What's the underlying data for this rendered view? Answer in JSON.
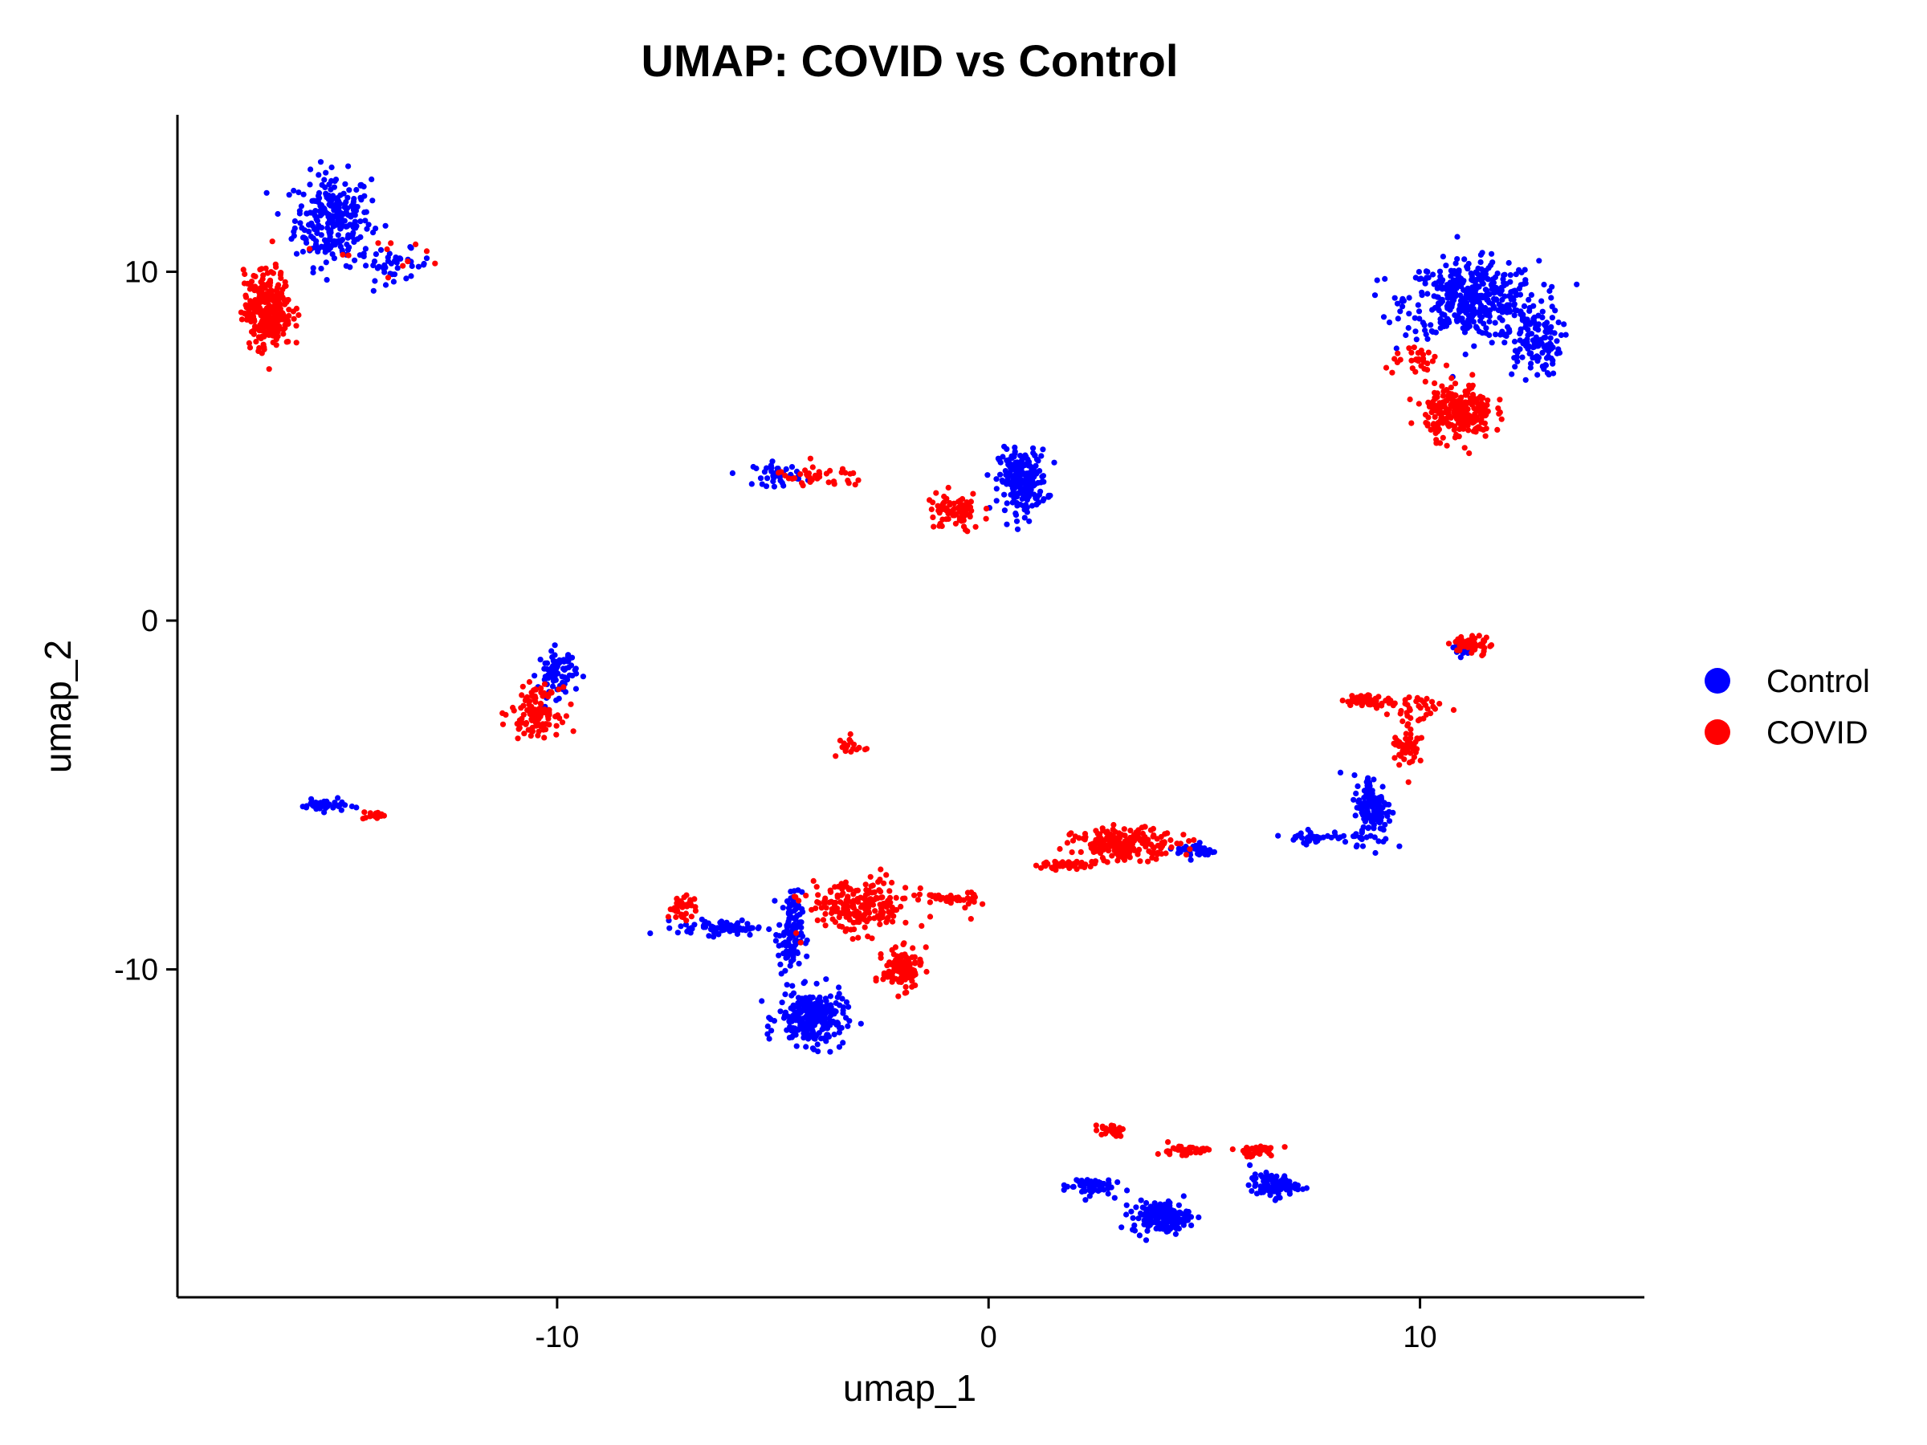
{
  "chart_data": {
    "type": "scatter",
    "title": "UMAP: COVID vs Control",
    "xlabel": "umap_1",
    "ylabel": "umap_2",
    "xlim": [
      -18.8,
      15.2
    ],
    "ylim": [
      -19.4,
      14.5
    ],
    "xticks": [
      {
        "value": -10,
        "label": "-10"
      },
      {
        "value": 0,
        "label": "0"
      },
      {
        "value": 10,
        "label": "10"
      }
    ],
    "yticks": [
      {
        "value": 10,
        "label": "10"
      },
      {
        "value": 0,
        "label": "0"
      },
      {
        "value": -10,
        "label": "-10"
      }
    ],
    "grid": false,
    "legend_position": "right",
    "series": [
      {
        "name": "Control",
        "color": "#0000FF",
        "points_approx_count": 4000,
        "clusters": [
          {
            "center": [
              -15.2,
              11.5
            ],
            "spread": [
              0.8,
              1.2
            ],
            "n": 260
          },
          {
            "center": [
              -13.8,
              10.2
            ],
            "spread": [
              0.8,
              0.4
            ],
            "n": 40
          },
          {
            "center": [
              11.2,
              9.2
            ],
            "spread": [
              1.4,
              1.0
            ],
            "n": 420
          },
          {
            "center": [
              12.6,
              8.0
            ],
            "spread": [
              0.6,
              0.9
            ],
            "n": 120
          },
          {
            "center": [
              0.8,
              4.0
            ],
            "spread": [
              0.5,
              0.8
            ],
            "n": 230
          },
          {
            "center": [
              -4.9,
              4.2
            ],
            "spread": [
              0.5,
              0.3
            ],
            "n": 40
          },
          {
            "center": [
              -10.0,
              -1.5
            ],
            "spread": [
              0.4,
              0.6
            ],
            "n": 80
          },
          {
            "center": [
              -15.4,
              -5.3
            ],
            "spread": [
              0.5,
              0.15
            ],
            "n": 40
          },
          {
            "center": [
              -4.1,
              -11.4
            ],
            "spread": [
              0.7,
              0.7
            ],
            "n": 260
          },
          {
            "center": [
              -4.6,
              -9.0
            ],
            "spread": [
              0.25,
              1.1
            ],
            "n": 110
          },
          {
            "center": [
              -6.2,
              -8.8
            ],
            "spread": [
              0.9,
              0.2
            ],
            "n": 70
          },
          {
            "center": [
              4.8,
              -6.6
            ],
            "spread": [
              0.4,
              0.2
            ],
            "n": 40
          },
          {
            "center": [
              8.9,
              -5.4
            ],
            "spread": [
              0.4,
              0.9
            ],
            "n": 140
          },
          {
            "center": [
              7.6,
              -6.2
            ],
            "spread": [
              0.7,
              0.15
            ],
            "n": 40
          },
          {
            "center": [
              4.0,
              -17.1
            ],
            "spread": [
              0.6,
              0.4
            ],
            "n": 180
          },
          {
            "center": [
              6.6,
              -16.2
            ],
            "spread": [
              0.5,
              0.3
            ],
            "n": 90
          },
          {
            "center": [
              2.3,
              -16.2
            ],
            "spread": [
              0.5,
              0.25
            ],
            "n": 60
          },
          {
            "center": [
              11.0,
              -0.8
            ],
            "spread": [
              0.3,
              0.2
            ],
            "n": 20
          }
        ]
      },
      {
        "name": "COVID",
        "color": "#FF0000",
        "points_approx_count": 3000,
        "clusters": [
          {
            "center": [
              -16.7,
              8.9
            ],
            "spread": [
              0.5,
              1.0
            ],
            "n": 300
          },
          {
            "center": [
              -14.3,
              10.5
            ],
            "spread": [
              1.1,
              0.4
            ],
            "n": 12
          },
          {
            "center": [
              10.9,
              6.0
            ],
            "spread": [
              0.7,
              0.7
            ],
            "n": 260
          },
          {
            "center": [
              10.0,
              7.4
            ],
            "spread": [
              0.7,
              0.3
            ],
            "n": 30
          },
          {
            "center": [
              -3.9,
              4.1
            ],
            "spread": [
              1.0,
              0.3
            ],
            "n": 40
          },
          {
            "center": [
              -0.8,
              3.1
            ],
            "spread": [
              0.6,
              0.5
            ],
            "n": 80
          },
          {
            "center": [
              -10.5,
              -2.6
            ],
            "spread": [
              0.5,
              0.6
            ],
            "n": 120
          },
          {
            "center": [
              -3.2,
              -3.6
            ],
            "spread": [
              0.3,
              0.3
            ],
            "n": 20
          },
          {
            "center": [
              -14.2,
              -5.6
            ],
            "spread": [
              0.3,
              0.1
            ],
            "n": 15
          },
          {
            "center": [
              -3.0,
              -8.2
            ],
            "spread": [
              1.1,
              0.7
            ],
            "n": 210
          },
          {
            "center": [
              -2.0,
              -10.0
            ],
            "spread": [
              0.4,
              0.5
            ],
            "n": 130
          },
          {
            "center": [
              -0.9,
              -8.0
            ],
            "spread": [
              0.6,
              0.2
            ],
            "n": 40
          },
          {
            "center": [
              -7.1,
              -8.2
            ],
            "spread": [
              0.3,
              0.3
            ],
            "n": 40
          },
          {
            "center": [
              3.2,
              -6.4
            ],
            "spread": [
              1.1,
              0.4
            ],
            "n": 200
          },
          {
            "center": [
              1.8,
              -7.0
            ],
            "spread": [
              0.7,
              0.1
            ],
            "n": 40
          },
          {
            "center": [
              8.8,
              -2.3
            ],
            "spread": [
              0.5,
              0.15
            ],
            "n": 60
          },
          {
            "center": [
              9.7,
              -3.5
            ],
            "spread": [
              0.3,
              0.7
            ],
            "n": 50
          },
          {
            "center": [
              11.2,
              -0.7
            ],
            "spread": [
              0.4,
              0.25
            ],
            "n": 50
          },
          {
            "center": [
              10.0,
              -2.5
            ],
            "spread": [
              0.6,
              0.4
            ],
            "n": 30
          },
          {
            "center": [
              2.8,
              -14.6
            ],
            "spread": [
              0.3,
              0.15
            ],
            "n": 30
          },
          {
            "center": [
              4.5,
              -15.2
            ],
            "spread": [
              0.5,
              0.15
            ],
            "n": 40
          },
          {
            "center": [
              6.2,
              -15.2
            ],
            "spread": [
              0.5,
              0.15
            ],
            "n": 40
          }
        ]
      }
    ]
  }
}
